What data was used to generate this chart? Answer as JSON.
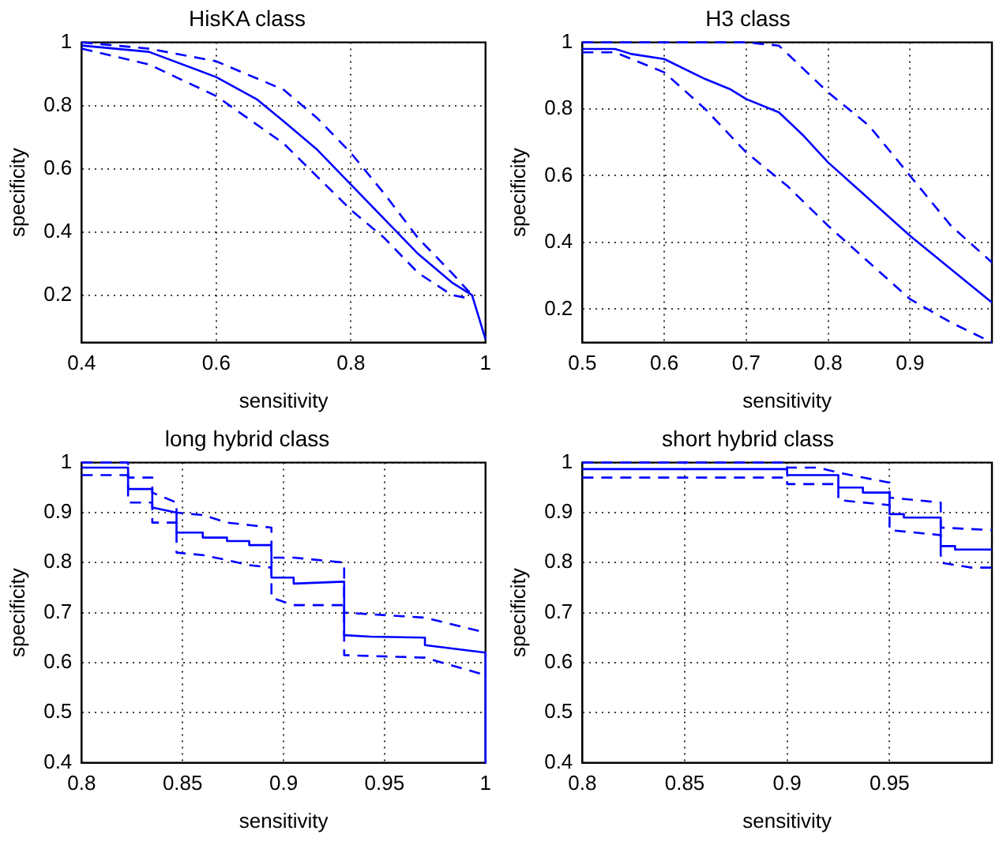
{
  "chart_data": [
    {
      "type": "line",
      "title": "HisKA class",
      "xlabel": "sensitivity",
      "ylabel": "specificity",
      "xlim": [
        0.4,
        1
      ],
      "xticks": [
        0.4,
        0.6,
        0.8,
        1
      ],
      "ylim": [
        0.05,
        1
      ],
      "yticks": [
        0.2,
        0.4,
        0.6,
        0.8,
        1
      ],
      "grid": true,
      "marker": "none",
      "series": [
        {
          "color": "#0000ff",
          "line_style": "solid",
          "x": [
            0.4,
            0.5,
            0.6,
            0.66,
            0.7,
            0.75,
            0.8,
            0.85,
            0.9,
            0.95,
            0.98,
            1
          ],
          "values": [
            0.99,
            0.97,
            0.89,
            0.82,
            0.75,
            0.66,
            0.55,
            0.44,
            0.33,
            0.24,
            0.2,
            0.06
          ]
        },
        {
          "color": "#0000ff",
          "line_style": "dashed",
          "x": [
            0.4,
            0.5,
            0.6,
            0.7,
            0.75,
            0.8,
            0.85,
            0.9,
            0.95,
            0.98
          ],
          "values": [
            1,
            0.98,
            0.94,
            0.85,
            0.76,
            0.65,
            0.52,
            0.38,
            0.27,
            0.2
          ]
        },
        {
          "color": "#0000ff",
          "line_style": "dashed",
          "x": [
            0.4,
            0.5,
            0.6,
            0.7,
            0.8,
            0.85,
            0.9,
            0.95,
            0.975
          ],
          "values": [
            0.98,
            0.93,
            0.83,
            0.68,
            0.47,
            0.38,
            0.27,
            0.2,
            0.19
          ]
        }
      ]
    },
    {
      "type": "line",
      "title": "H3 class",
      "xlabel": "sensitivity",
      "ylabel": "specificity",
      "xlim": [
        0.5,
        1
      ],
      "xticks": [
        0.5,
        0.6,
        0.7,
        0.8,
        0.9
      ],
      "ylim": [
        0.1,
        1
      ],
      "yticks": [
        0.2,
        0.4,
        0.6,
        0.8,
        1
      ],
      "grid": true,
      "marker": "none",
      "series": [
        {
          "color": "#0000ff",
          "line_style": "solid",
          "x": [
            0.5,
            0.54,
            0.56,
            0.6,
            0.65,
            0.68,
            0.7,
            0.74,
            0.77,
            0.8,
            0.85,
            0.9,
            0.96,
            1
          ],
          "values": [
            0.98,
            0.98,
            0.965,
            0.95,
            0.89,
            0.86,
            0.83,
            0.79,
            0.72,
            0.64,
            0.53,
            0.42,
            0.3,
            0.22
          ]
        },
        {
          "color": "#0000ff",
          "line_style": "dashed",
          "x": [
            0.5,
            0.7,
            0.74,
            0.77,
            0.8,
            0.85,
            0.9,
            0.95,
            1
          ],
          "values": [
            1,
            1,
            0.99,
            0.92,
            0.85,
            0.75,
            0.6,
            0.45,
            0.34
          ]
        },
        {
          "color": "#0000ff",
          "line_style": "dashed",
          "x": [
            0.5,
            0.54,
            0.6,
            0.65,
            0.7,
            0.75,
            0.8,
            0.85,
            0.9,
            0.95,
            1
          ],
          "values": [
            0.97,
            0.97,
            0.91,
            0.8,
            0.67,
            0.57,
            0.45,
            0.34,
            0.23,
            0.16,
            0.1
          ]
        }
      ]
    },
    {
      "type": "line",
      "title": "long hybrid class",
      "xlabel": "sensitivity",
      "ylabel": "specificity",
      "xlim": [
        0.8,
        1
      ],
      "xticks": [
        0.8,
        0.85,
        0.9,
        0.95,
        1
      ],
      "ylim": [
        0.4,
        1
      ],
      "yticks": [
        0.4,
        0.5,
        0.6,
        0.7,
        0.8,
        0.9,
        1
      ],
      "grid": true,
      "marker": "none",
      "series": [
        {
          "color": "#0000ff",
          "line_style": "solid",
          "x": [
            0.8,
            0.823,
            0.823,
            0.835,
            0.835,
            0.847,
            0.847,
            0.86,
            0.86,
            0.872,
            0.872,
            0.883,
            0.883,
            0.894,
            0.894,
            0.905,
            0.905,
            0.93,
            0.93,
            0.943,
            0.97,
            0.97,
            1,
            1
          ],
          "values": [
            0.99,
            0.99,
            0.947,
            0.947,
            0.91,
            0.9,
            0.86,
            0.86,
            0.85,
            0.85,
            0.843,
            0.843,
            0.835,
            0.835,
            0.77,
            0.77,
            0.758,
            0.762,
            0.655,
            0.652,
            0.65,
            0.635,
            0.62,
            0.4
          ]
        },
        {
          "color": "#0000ff",
          "line_style": "dashed",
          "x": [
            0.8,
            0.823,
            0.823,
            0.835,
            0.835,
            0.847,
            0.847,
            0.86,
            0.872,
            0.883,
            0.894,
            0.894,
            0.905,
            0.93,
            0.93,
            0.97,
            1
          ],
          "values": [
            1,
            1,
            0.97,
            0.97,
            0.94,
            0.92,
            0.9,
            0.895,
            0.88,
            0.875,
            0.87,
            0.81,
            0.81,
            0.8,
            0.7,
            0.69,
            0.66
          ]
        },
        {
          "color": "#0000ff",
          "line_style": "dashed",
          "x": [
            0.8,
            0.823,
            0.823,
            0.835,
            0.835,
            0.847,
            0.847,
            0.86,
            0.872,
            0.883,
            0.894,
            0.894,
            0.905,
            0.93,
            0.93,
            0.97,
            1
          ],
          "values": [
            0.975,
            0.975,
            0.92,
            0.92,
            0.88,
            0.88,
            0.82,
            0.815,
            0.805,
            0.795,
            0.79,
            0.73,
            0.715,
            0.715,
            0.615,
            0.61,
            0.575
          ]
        }
      ]
    },
    {
      "type": "line",
      "title": "short hybrid class",
      "xlabel": "sensitivity",
      "ylabel": "specificity",
      "xlim": [
        0.8,
        1
      ],
      "xticks": [
        0.8,
        0.85,
        0.9,
        0.95
      ],
      "ylim": [
        0.4,
        1
      ],
      "yticks": [
        0.4,
        0.5,
        0.6,
        0.7,
        0.8,
        0.9,
        1
      ],
      "grid": true,
      "marker": "none",
      "series": [
        {
          "color": "#0000ff",
          "line_style": "solid",
          "x": [
            0.8,
            0.9,
            0.9,
            0.925,
            0.925,
            0.937,
            0.937,
            0.95,
            0.95,
            0.957,
            0.957,
            0.975,
            0.975,
            0.982,
            0.982,
            1
          ],
          "values": [
            0.987,
            0.987,
            0.975,
            0.975,
            0.95,
            0.95,
            0.94,
            0.94,
            0.897,
            0.897,
            0.89,
            0.89,
            0.833,
            0.833,
            0.826,
            0.826
          ]
        },
        {
          "color": "#0000ff",
          "line_style": "dashed",
          "x": [
            0.8,
            0.9,
            0.9,
            0.915,
            0.925,
            0.937,
            0.95,
            0.95,
            0.975,
            0.975,
            1
          ],
          "values": [
            1,
            1,
            0.99,
            0.99,
            0.98,
            0.97,
            0.96,
            0.93,
            0.92,
            0.87,
            0.865
          ]
        },
        {
          "color": "#0000ff",
          "line_style": "dashed",
          "x": [
            0.8,
            0.9,
            0.9,
            0.925,
            0.925,
            0.95,
            0.95,
            0.975,
            0.975,
            0.99,
            1
          ],
          "values": [
            0.97,
            0.97,
            0.957,
            0.957,
            0.925,
            0.915,
            0.865,
            0.855,
            0.8,
            0.79,
            0.79
          ]
        }
      ]
    }
  ]
}
